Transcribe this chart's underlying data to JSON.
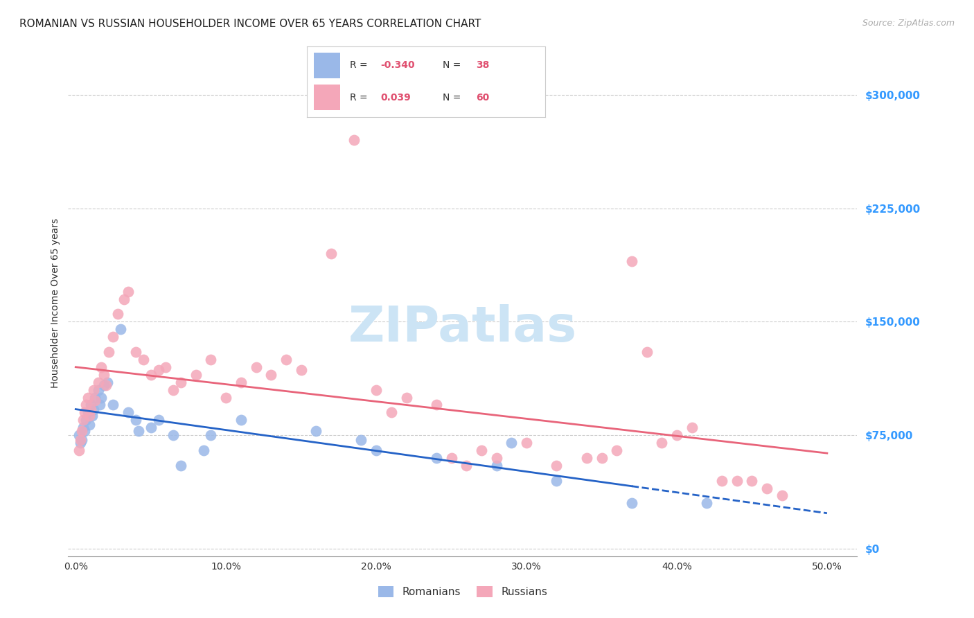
{
  "title": "ROMANIAN VS RUSSIAN HOUSEHOLDER INCOME OVER 65 YEARS CORRELATION CHART",
  "source": "Source: ZipAtlas.com",
  "ylabel": "Householder Income Over 65 years",
  "xlabel_ticks": [
    "0.0%",
    "10.0%",
    "20.0%",
    "30.0%",
    "40.0%",
    "50.0%"
  ],
  "xlabel_vals": [
    0.0,
    10.0,
    20.0,
    30.0,
    40.0,
    50.0
  ],
  "ytick_labels": [
    "$0",
    "$75,000",
    "$150,000",
    "$225,000",
    "$300,000"
  ],
  "ytick_vals": [
    0,
    75000,
    150000,
    225000,
    300000
  ],
  "ylim": [
    -5000,
    330000
  ],
  "xlim": [
    -0.5,
    52
  ],
  "romanian_R": -0.34,
  "romanian_N": 38,
  "russian_R": 0.039,
  "russian_N": 60,
  "romanian_color": "#9ab8e8",
  "russian_color": "#f4a7b9",
  "romanian_line_color": "#2563c7",
  "russian_line_color": "#e8647a",
  "romanian_x": [
    0.2,
    0.3,
    0.4,
    0.5,
    0.6,
    0.7,
    0.8,
    0.9,
    1.0,
    1.1,
    1.2,
    1.3,
    1.5,
    1.6,
    1.7,
    1.9,
    2.1,
    2.5,
    3.0,
    3.5,
    4.0,
    4.2,
    5.0,
    5.5,
    6.5,
    7.0,
    8.5,
    9.0,
    11.0,
    16.0,
    19.0,
    20.0,
    24.0,
    28.0,
    29.0,
    32.0,
    37.0,
    42.0
  ],
  "romanian_y": [
    75000,
    70000,
    72000,
    80000,
    78000,
    85000,
    90000,
    82000,
    95000,
    88000,
    92000,
    100000,
    105000,
    95000,
    100000,
    108000,
    110000,
    95000,
    145000,
    90000,
    85000,
    78000,
    80000,
    85000,
    75000,
    55000,
    65000,
    75000,
    85000,
    78000,
    72000,
    65000,
    60000,
    55000,
    70000,
    45000,
    30000,
    30000
  ],
  "russian_x": [
    0.2,
    0.3,
    0.4,
    0.5,
    0.6,
    0.7,
    0.8,
    0.9,
    1.0,
    1.2,
    1.3,
    1.5,
    1.7,
    1.9,
    2.0,
    2.2,
    2.5,
    2.8,
    3.2,
    3.5,
    4.0,
    4.5,
    5.0,
    5.5,
    6.0,
    6.5,
    7.0,
    8.0,
    9.0,
    10.0,
    11.0,
    12.0,
    13.0,
    14.0,
    15.0,
    17.0,
    18.5,
    20.0,
    21.0,
    22.0,
    24.0,
    25.0,
    26.0,
    27.0,
    28.0,
    30.0,
    32.0,
    34.0,
    35.0,
    36.0,
    37.0,
    38.0,
    39.0,
    40.0,
    41.0,
    43.0,
    44.0,
    45.0,
    46.0,
    47.0
  ],
  "russian_y": [
    65000,
    72000,
    78000,
    85000,
    90000,
    95000,
    100000,
    88000,
    92000,
    105000,
    98000,
    110000,
    120000,
    115000,
    108000,
    130000,
    140000,
    155000,
    165000,
    170000,
    130000,
    125000,
    115000,
    118000,
    120000,
    105000,
    110000,
    115000,
    125000,
    100000,
    110000,
    120000,
    115000,
    125000,
    118000,
    195000,
    270000,
    105000,
    90000,
    100000,
    95000,
    60000,
    55000,
    65000,
    60000,
    70000,
    55000,
    60000,
    60000,
    65000,
    190000,
    130000,
    70000,
    75000,
    80000,
    45000,
    45000,
    45000,
    40000,
    35000
  ],
  "background_color": "#ffffff",
  "grid_color": "#cccccc",
  "watermark_zip": "ZIP",
  "watermark_atlas": "atlas",
  "watermark_color_zip": "#cce4f5",
  "watermark_color_atlas": "#cce4f5",
  "title_fontsize": 11,
  "axis_label_color": "#333333",
  "ytick_color": "#3399ff",
  "legend_R_color": "#e05070"
}
